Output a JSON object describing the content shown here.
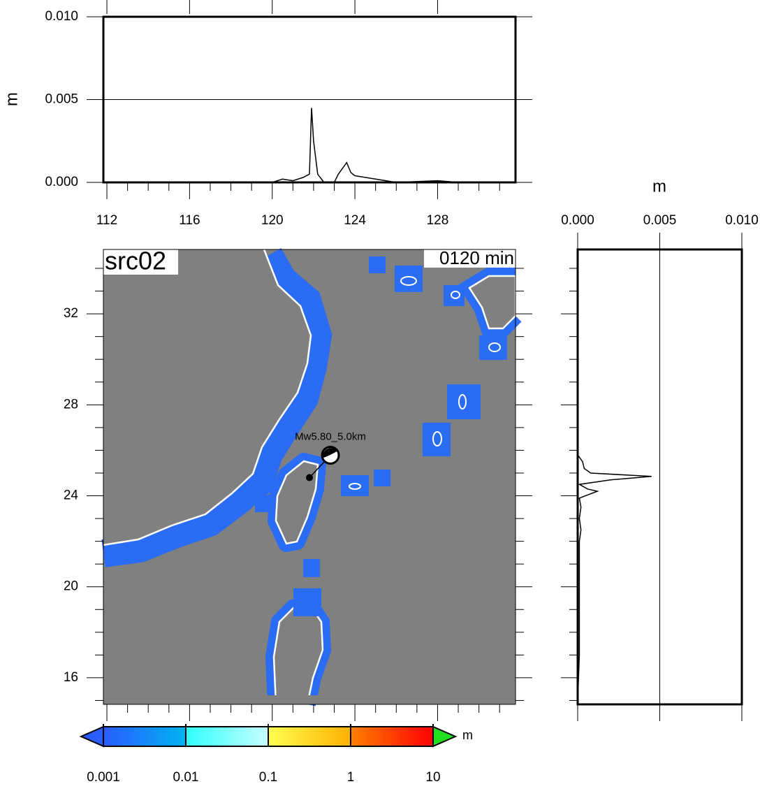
{
  "chart_data": [
    {
      "type": "line",
      "ylabel": "m",
      "x": [
        120.0,
        120.5,
        121.0,
        121.5,
        121.8,
        121.9,
        122.0,
        122.2,
        122.5,
        123.0,
        123.2,
        123.6,
        123.8,
        124.0,
        124.5,
        125.0,
        125.5,
        126.0,
        128.0,
        129.0
      ],
      "values": [
        0,
        0.0002,
        0.0001,
        0.0003,
        0.0005,
        0.0045,
        0.0025,
        0.0005,
        0,
        0,
        0.0005,
        0.0012,
        0.0006,
        0.0004,
        0.0003,
        0.0002,
        0.0001,
        0,
        0.0001,
        0
      ],
      "xlim": [
        111.83,
        131.77
      ],
      "xticks": [
        112,
        116,
        120,
        124,
        128
      ],
      "ylim": [
        0,
        0.01
      ],
      "yticks": [
        {
          "value": 0,
          "label": "0.000"
        },
        {
          "value": 0.005,
          "label": "0.005"
        },
        {
          "value": 0.01,
          "label": "0.010"
        }
      ],
      "grid_at": 0.005,
      "color": "#000000"
    },
    {
      "type": "hline",
      "xlabel": "m",
      "y": [
        25.8,
        25.5,
        25.2,
        25.0,
        24.85,
        24.7,
        24.5,
        24.3,
        24.2,
        23.9,
        23.5,
        23.0,
        22.5,
        22.0,
        21.0,
        20.0,
        19.0,
        18.0,
        17.0,
        15.0
      ],
      "values": [
        0,
        0.0003,
        0.0004,
        0.0008,
        0.0045,
        0.002,
        0.0001,
        0.0006,
        0.0012,
        0.0001,
        0.0002,
        0.0001,
        0.0002,
        0.0001,
        0.0001,
        0.0001,
        0.0001,
        0.0001,
        0.0001,
        0
      ],
      "xlim": [
        0,
        0.01
      ],
      "xticks": [
        {
          "value": 0,
          "label": "0.000"
        },
        {
          "value": 0.005,
          "label": "0.005"
        },
        {
          "value": 0.01,
          "label": "0.010"
        }
      ],
      "ylim": [
        14.83,
        34.83
      ],
      "grid_at": 0.005,
      "color": "#000000"
    },
    {
      "type": "colorbar",
      "unit": "m",
      "log": true,
      "lim": [
        0.001,
        10
      ],
      "ticks": [
        0.001,
        0.01,
        0.1,
        1,
        10
      ],
      "colors": [
        [
          "#2a5cff",
          "#00b4f0"
        ],
        [
          "#30ffff",
          "#c8ffff"
        ],
        [
          "#ffff50",
          "#ffb000"
        ],
        [
          "#ff8000",
          "#ff0000"
        ]
      ],
      "under_color": "#2a5cff",
      "over_color": "#20e020"
    }
  ],
  "map": {
    "title": "src02",
    "time": "0120 min",
    "event": "Mw5.80_5.0km",
    "xlim": [
      111.83,
      131.77
    ],
    "ylim": [
      14.83,
      34.83
    ],
    "yticks": [
      16,
      20,
      24,
      28,
      32
    ],
    "epicenter": {
      "lon": 121.8,
      "lat": 24.8
    }
  }
}
